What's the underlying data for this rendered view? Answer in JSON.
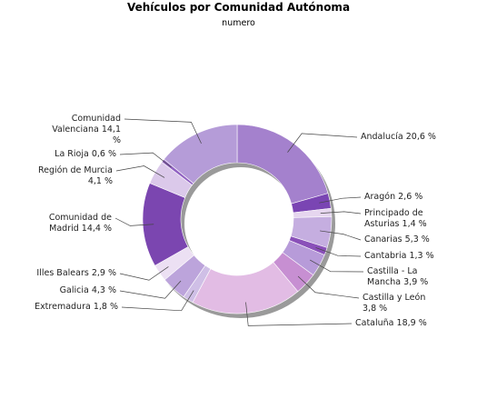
{
  "chart_data": {
    "type": "pie",
    "donut": true,
    "title": "Vehículos por Comunidad Autónoma",
    "subtitle": "numero",
    "categories": [
      "Andalucía",
      "Aragón",
      "Principado de Asturias",
      "Canarias",
      "Cantabria",
      "Castilla - La Mancha",
      "Castilla y León",
      "Cataluña",
      "Extremadura",
      "Galicia",
      "Illes Balears",
      "Comunidad de Madrid",
      "Región de Murcia",
      "La Rioja",
      "Comunidad Valenciana"
    ],
    "values": [
      20.6,
      2.6,
      1.4,
      5.3,
      1.3,
      3.9,
      3.8,
      18.9,
      1.8,
      4.3,
      2.9,
      14.4,
      4.1,
      0.6,
      14.1
    ],
    "value_labels": [
      "20,6 %",
      "2,6 %",
      "1,4 %",
      "5,3 %",
      "1,3 %",
      "3,9 %",
      "3,8 %",
      "18,9 %",
      "1,8 %",
      "4,3 %",
      "2,9 %",
      "14,4 %",
      "4,1 %",
      "0,6 %",
      "14,1 %"
    ],
    "colors": [
      "#a481cd",
      "#7a45b3",
      "#e6d6ef",
      "#c5aee0",
      "#8a50b9",
      "#b79bd9",
      "#c78fd2",
      "#e2bce4",
      "#cfbfe6",
      "#bca4db",
      "#ece0f3",
      "#7b46b0",
      "#dbc9ea",
      "#9162c2",
      "#b59cd8"
    ]
  }
}
